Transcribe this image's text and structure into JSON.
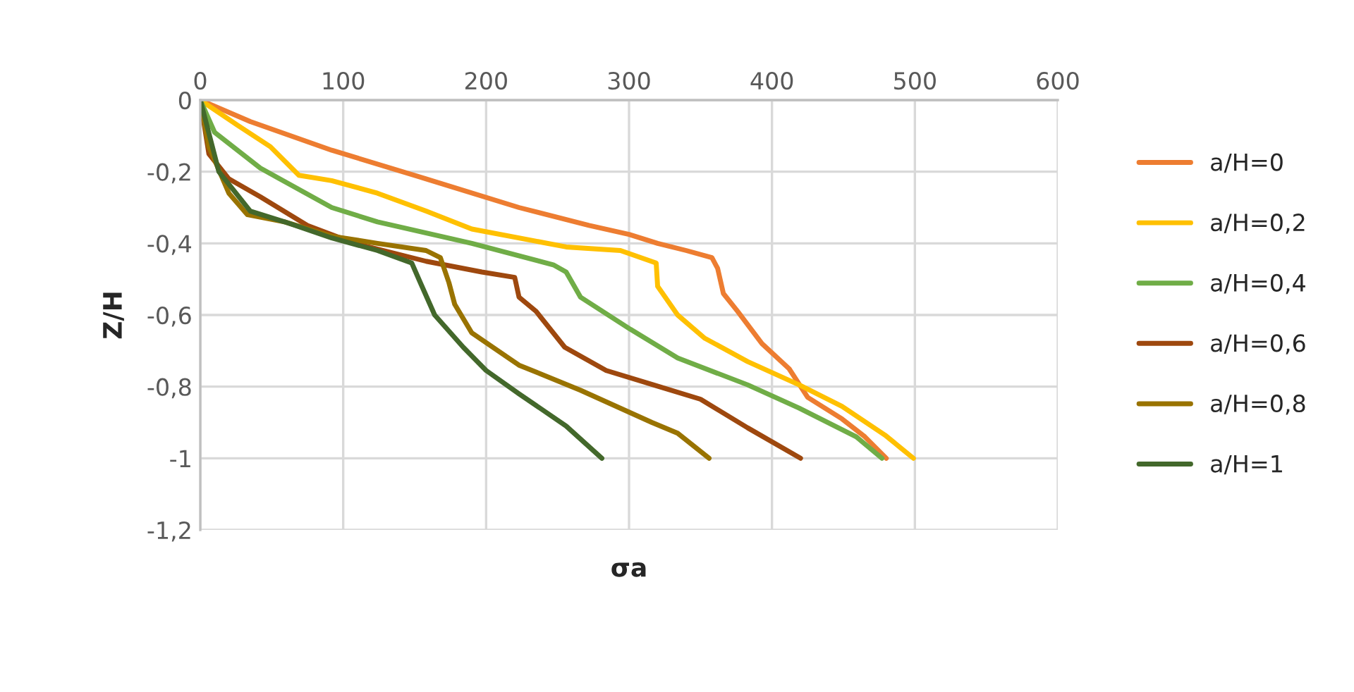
{
  "chart_data": {
    "type": "line",
    "xlabel": "σa",
    "ylabel": "Z/H",
    "xlim": [
      0,
      600
    ],
    "xticks": [
      0,
      100,
      200,
      300,
      400,
      500,
      600
    ],
    "ylim": [
      -1.2,
      0
    ],
    "yticks": [
      {
        "value": 0,
        "label": "0"
      },
      {
        "value": -0.2,
        "label": "-0,2"
      },
      {
        "value": -0.4,
        "label": "-0,4"
      },
      {
        "value": -0.6,
        "label": "-0,6"
      },
      {
        "value": -0.8,
        "label": "-0,8"
      },
      {
        "value": -1,
        "label": "-1"
      },
      {
        "value": -1.2,
        "label": "-1,2"
      }
    ],
    "grid": true,
    "legend": "right",
    "marker": "none",
    "line_style": "solid",
    "series": [
      {
        "name": "a/H=0",
        "color": "#ed7d31",
        "x": [
          0,
          35,
          92,
          158,
          223,
          272,
          300,
          320,
          340,
          358,
          362,
          366,
          376,
          393,
          412,
          425,
          449,
          465,
          480
        ],
        "values": [
          0,
          -0.06,
          -0.14,
          -0.22,
          -0.3,
          -0.35,
          -0.375,
          -0.4,
          -0.42,
          -0.44,
          -0.47,
          -0.54,
          -0.59,
          -0.68,
          -0.75,
          -0.83,
          -0.89,
          -0.94,
          -1.0
        ]
      },
      {
        "name": "a/H=0,2",
        "color": "#ffc000",
        "x": [
          0,
          26,
          49,
          69,
          92,
          124,
          158,
          190,
          256,
          294,
          319,
          320,
          334,
          353,
          383,
          419,
          449,
          479,
          499
        ],
        "values": [
          0,
          -0.07,
          -0.13,
          -0.21,
          -0.225,
          -0.26,
          -0.31,
          -0.36,
          -0.41,
          -0.42,
          -0.455,
          -0.52,
          -0.6,
          -0.665,
          -0.73,
          -0.795,
          -0.855,
          -0.935,
          -1.0
        ]
      },
      {
        "name": "a/H=0,4",
        "color": "#70ad47",
        "x": [
          0,
          10,
          42,
          92,
          124,
          190,
          247,
          256,
          266,
          301,
          334,
          383,
          419,
          459,
          477
        ],
        "values": [
          0,
          -0.09,
          -0.19,
          -0.3,
          -0.34,
          -0.4,
          -0.46,
          -0.48,
          -0.55,
          -0.64,
          -0.72,
          -0.795,
          -0.86,
          -0.94,
          -1.0
        ]
      },
      {
        "name": "a/H=0,6",
        "color": "#9e480e",
        "x": [
          0,
          6,
          20,
          42,
          75,
          108,
          158,
          197,
          220,
          223,
          235,
          255,
          284,
          317,
          350,
          383,
          420
        ],
        "values": [
          0,
          -0.15,
          -0.22,
          -0.27,
          -0.35,
          -0.4,
          -0.45,
          -0.48,
          -0.495,
          -0.55,
          -0.59,
          -0.69,
          -0.755,
          -0.795,
          -0.835,
          -0.915,
          -1.0
        ]
      },
      {
        "name": "a/H=0,8",
        "color": "#997300",
        "x": [
          0,
          6,
          20,
          33,
          59,
          92,
          124,
          158,
          168,
          174,
          178,
          190,
          223,
          266,
          316,
          334,
          356
        ],
        "values": [
          0,
          -0.13,
          -0.26,
          -0.32,
          -0.34,
          -0.38,
          -0.4,
          -0.42,
          -0.44,
          -0.51,
          -0.57,
          -0.65,
          -0.74,
          -0.81,
          -0.9,
          -0.93,
          -1.0
        ]
      },
      {
        "name": "a/H=1",
        "color": "#43682b",
        "x": [
          0,
          13,
          35,
          59,
          92,
          124,
          148,
          154,
          164,
          184,
          200,
          223,
          256,
          281
        ],
        "values": [
          0,
          -0.2,
          -0.31,
          -0.34,
          -0.385,
          -0.42,
          -0.455,
          -0.51,
          -0.6,
          -0.69,
          -0.755,
          -0.82,
          -0.91,
          -1.0
        ]
      }
    ]
  }
}
